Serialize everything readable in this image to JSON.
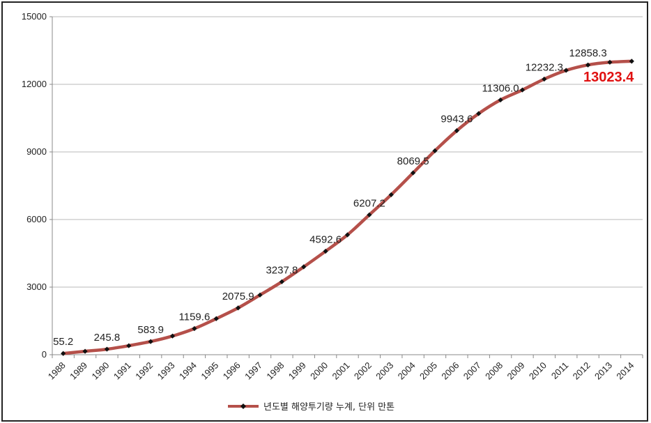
{
  "chart_data": {
    "type": "line",
    "title": "",
    "xlabel": "",
    "ylabel": "",
    "x": [
      "1988",
      "1989",
      "1990",
      "1991",
      "1992",
      "1993",
      "1994",
      "1995",
      "1996",
      "1997",
      "1998",
      "1999",
      "2000",
      "2001",
      "2002",
      "2003",
      "2004",
      "2005",
      "2006",
      "2007",
      "2008",
      "2009",
      "2010",
      "2011",
      "2012",
      "2013",
      "2014"
    ],
    "series": [
      {
        "name": "년도별 해양투기량 누계, 단위 만톤",
        "color": "#b5504a",
        "values": [
          55.2,
          150,
          245.8,
          400,
          583.9,
          830,
          1159.6,
          1600,
          2075.9,
          2650,
          3237.8,
          3900,
          4592.6,
          5320,
          6207.2,
          7100,
          8069.5,
          9050,
          9943.6,
          10700,
          11306.0,
          11750,
          12232.3,
          12620,
          12858.3,
          12980,
          13023.4
        ]
      }
    ],
    "ylim": [
      0,
      15000
    ],
    "yticks": [
      0,
      3000,
      6000,
      9000,
      12000,
      15000
    ],
    "grid": true,
    "legend_position": "bottom",
    "data_labels": [
      {
        "x": "1988",
        "text": "55.2"
      },
      {
        "x": "1990",
        "text": "245.8"
      },
      {
        "x": "1992",
        "text": "583.9"
      },
      {
        "x": "1994",
        "text": "1159.6"
      },
      {
        "x": "1996",
        "text": "2075.9"
      },
      {
        "x": "1998",
        "text": "3237.8"
      },
      {
        "x": "2000",
        "text": "4592.6"
      },
      {
        "x": "2002",
        "text": "6207.2"
      },
      {
        "x": "2004",
        "text": "8069.5"
      },
      {
        "x": "2006",
        "text": "9943.6"
      },
      {
        "x": "2008",
        "text": "11306.0"
      },
      {
        "x": "2010",
        "text": "12232.3"
      },
      {
        "x": "2012",
        "text": "12858.3"
      },
      {
        "x": "2014",
        "text": "13023.4",
        "highlight": true,
        "color": "#e01010"
      }
    ]
  }
}
